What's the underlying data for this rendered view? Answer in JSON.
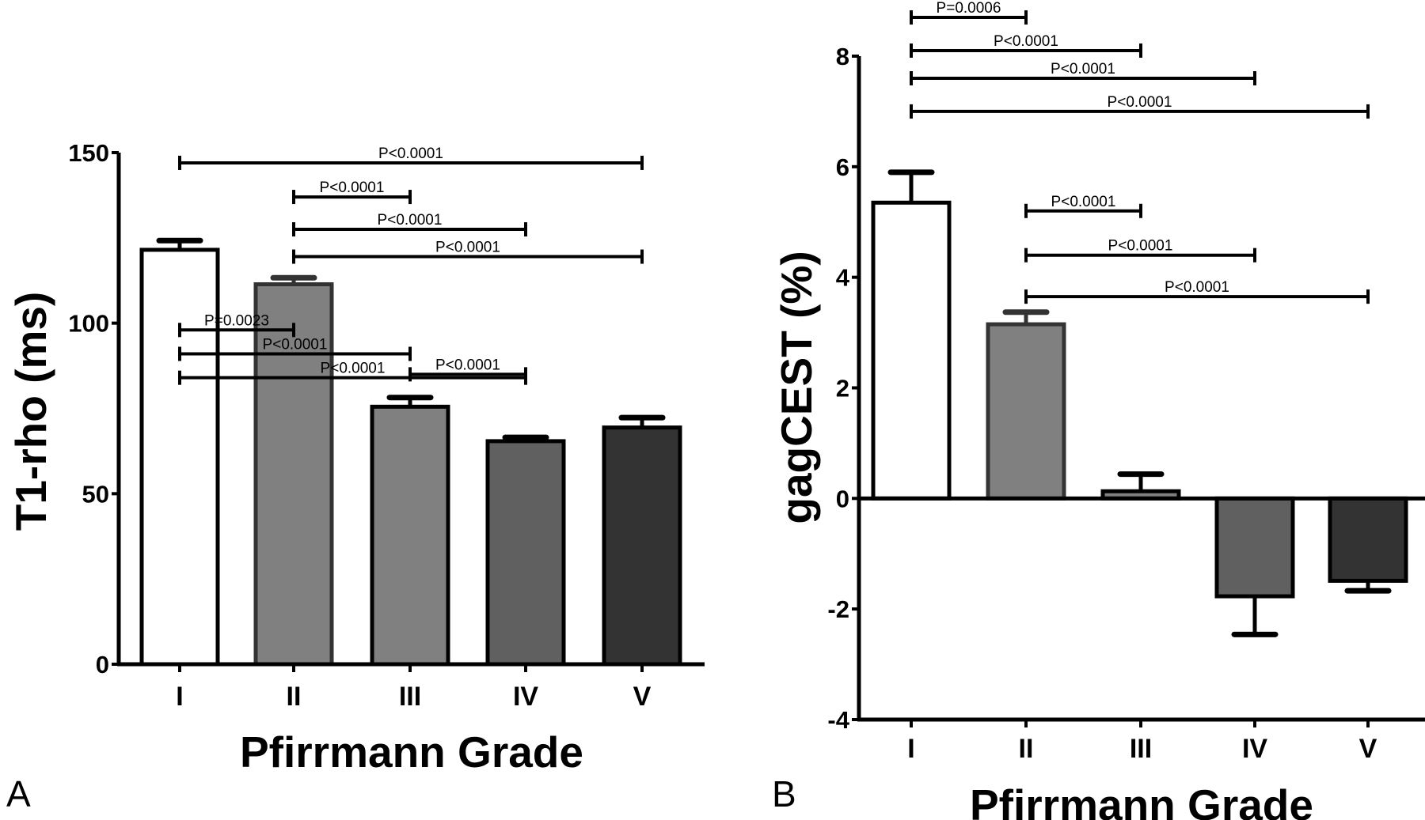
{
  "chart_data": [
    {
      "type": "bar",
      "panel_label": "A",
      "title": "",
      "xlabel": "Pfirrmann Grade",
      "ylabel": "T1-rho (ms)",
      "categories": [
        "I",
        "II",
        "III",
        "IV",
        "V"
      ],
      "values": [
        121.5,
        111.4,
        75.5,
        65.4,
        69.4
      ],
      "error": [
        2.7,
        1.9,
        2.7,
        1.1,
        2.9
      ],
      "error_direction": [
        "up",
        "up",
        "up",
        "up",
        "up"
      ],
      "colors": [
        "#ffffff",
        "#808080",
        "#808080",
        "#606060",
        "#333333"
      ],
      "ylim": [
        0,
        150
      ],
      "yticks": [
        0,
        50,
        100,
        150
      ],
      "ytick_labels": [
        "0",
        "50",
        "100",
        "150"
      ],
      "grid": false,
      "comparisons": [
        {
          "from": 0,
          "to": 1,
          "label": "P=0.0023",
          "level": 98
        },
        {
          "from": 0,
          "to": 2,
          "label": "P<0.0001",
          "level": 91
        },
        {
          "from": 0,
          "to": 3,
          "label": "P<0.0001",
          "level": 84
        },
        {
          "from": 0,
          "to": 4,
          "label": "P<0.0001",
          "level": 147
        },
        {
          "from": 1,
          "to": 2,
          "label": "P<0.0001",
          "level": 137
        },
        {
          "from": 1,
          "to": 3,
          "label": "P<0.0001",
          "level": 127.5
        },
        {
          "from": 1,
          "to": 4,
          "label": "P<0.0001",
          "level": 119.5
        },
        {
          "from": 2,
          "to": 3,
          "label": "P<0.0001",
          "level": 85
        }
      ]
    },
    {
      "type": "bar",
      "panel_label": "B",
      "title": "",
      "xlabel": "Pfirrmann Grade",
      "ylabel": "gagCEST (%)",
      "categories": [
        "I",
        "II",
        "III",
        "IV",
        "V"
      ],
      "values": [
        5.35,
        3.15,
        0.13,
        -1.77,
        -1.49
      ],
      "error": [
        0.55,
        0.22,
        0.31,
        0.69,
        0.18
      ],
      "error_direction": [
        "up",
        "up",
        "up",
        "down",
        "down"
      ],
      "colors": [
        "#ffffff",
        "#808080",
        "#808080",
        "#606060",
        "#333333"
      ],
      "ylim": [
        -4,
        8
      ],
      "yticks": [
        -4,
        -2,
        0,
        2,
        4,
        6,
        8
      ],
      "ytick_labels": [
        "-4",
        "-2",
        "0",
        "2",
        "4",
        "6",
        "8"
      ],
      "grid": false,
      "comparisons": [
        {
          "from": 0,
          "to": 1,
          "label": "P=0.0006",
          "level": 8.7
        },
        {
          "from": 0,
          "to": 2,
          "label": "P<0.0001",
          "level": 8.1
        },
        {
          "from": 0,
          "to": 3,
          "label": "P<0.0001",
          "level": 7.6
        },
        {
          "from": 0,
          "to": 4,
          "label": "P<0.0001",
          "level": 7.0
        },
        {
          "from": 1,
          "to": 2,
          "label": "P<0.0001",
          "level": 5.2
        },
        {
          "from": 1,
          "to": 3,
          "label": "P<0.0001",
          "level": 4.4
        },
        {
          "from": 1,
          "to": 4,
          "label": "P<0.0001",
          "level": 3.65
        }
      ]
    }
  ]
}
